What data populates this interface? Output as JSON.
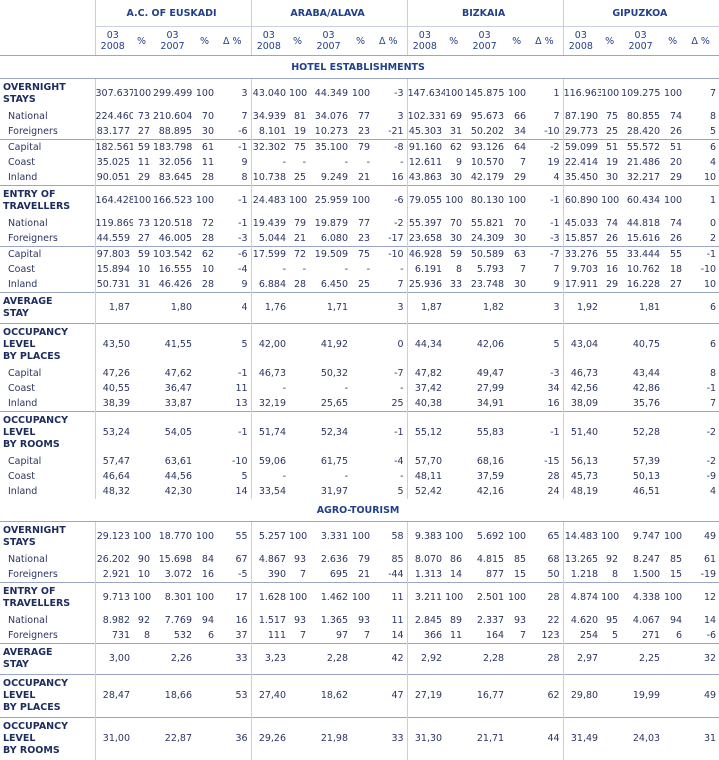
{
  "header": {
    "regions": [
      "A.C. OF EUSKADI",
      "ARABA/ALAVA",
      "BIZKAIA",
      "GIPUZKOA"
    ],
    "columns": [
      [
        "03",
        "2008"
      ],
      [
        "%"
      ],
      [
        "03",
        "2007"
      ],
      [
        "%"
      ],
      [
        "Δ %"
      ]
    ]
  },
  "sections": [
    {
      "title": "HOTEL ESTABLISHMENTS",
      "groups": [
        [
          {
            "label": [
              "OVERNIGHT",
              "STAYS"
            ],
            "values": [
              "307.637",
              "100",
              "299.499",
              "100",
              "3",
              "43.040",
              "100",
              "44.349",
              "100",
              "-3",
              "147.634",
              "100",
              "145.875",
              "100",
              "1",
              "116.963",
              "100",
              "109.275",
              "100",
              "7"
            ]
          },
          {
            "label": [
              "National"
            ],
            "values": [
              "224.460",
              "73",
              "210.604",
              "70",
              "7",
              "34.939",
              "81",
              "34.076",
              "77",
              "3",
              "102.331",
              "69",
              "95.673",
              "66",
              "7",
              "87.190",
              "75",
              "80.855",
              "74",
              "8"
            ]
          },
          {
            "label": [
              "Foreigners"
            ],
            "values": [
              "83.177",
              "27",
              "88.895",
              "30",
              "-6",
              "8.101",
              "19",
              "10.273",
              "23",
              "-21",
              "45.303",
              "31",
              "50.202",
              "34",
              "-10",
              "29.773",
              "25",
              "28.420",
              "26",
              "5"
            ]
          }
        ],
        [
          {
            "label": [
              "Capital"
            ],
            "values": [
              "182.561",
              "59",
              "183.798",
              "61",
              "-1",
              "32.302",
              "75",
              "35.100",
              "79",
              "-8",
              "91.160",
              "62",
              "93.126",
              "64",
              "-2",
              "59.099",
              "51",
              "55.572",
              "51",
              "6"
            ]
          },
          {
            "label": [
              "Coast"
            ],
            "values": [
              "35.025",
              "11",
              "32.056",
              "11",
              "9",
              "-",
              "-",
              "-",
              "-",
              "-",
              "12.611",
              "9",
              "10.570",
              "7",
              "19",
              "22.414",
              "19",
              "21.486",
              "20",
              "4"
            ]
          },
          {
            "label": [
              "Inland"
            ],
            "values": [
              "90.051",
              "29",
              "83.645",
              "28",
              "8",
              "10.738",
              "25",
              "9.249",
              "21",
              "16",
              "43.863",
              "30",
              "42.179",
              "29",
              "4",
              "35.450",
              "30",
              "32.217",
              "29",
              "10"
            ]
          }
        ],
        [
          {
            "label": [
              "ENTRY OF",
              "TRAVELLERS"
            ],
            "values": [
              "164.428",
              "100",
              "166.523",
              "100",
              "-1",
              "24.483",
              "100",
              "25.959",
              "100",
              "-6",
              "79.055",
              "100",
              "80.130",
              "100",
              "-1",
              "60.890",
              "100",
              "60.434",
              "100",
              "1"
            ]
          },
          {
            "label": [
              "National"
            ],
            "values": [
              "119.869",
              "73",
              "120.518",
              "72",
              "-1",
              "19.439",
              "79",
              "19.879",
              "77",
              "-2",
              "55.397",
              "70",
              "55.821",
              "70",
              "-1",
              "45.033",
              "74",
              "44.818",
              "74",
              "0"
            ]
          },
          {
            "label": [
              "Foreigners"
            ],
            "values": [
              "44.559",
              "27",
              "46.005",
              "28",
              "-3",
              "5.044",
              "21",
              "6.080",
              "23",
              "-17",
              "23.658",
              "30",
              "24.309",
              "30",
              "-3",
              "15.857",
              "26",
              "15.616",
              "26",
              "2"
            ]
          }
        ],
        [
          {
            "label": [
              "Capital"
            ],
            "values": [
              "97.803",
              "59",
              "103.542",
              "62",
              "-6",
              "17.599",
              "72",
              "19.509",
              "75",
              "-10",
              "46.928",
              "59",
              "50.589",
              "63",
              "-7",
              "33.276",
              "55",
              "33.444",
              "55",
              "-1"
            ]
          },
          {
            "label": [
              "Coast"
            ],
            "values": [
              "15.894",
              "10",
              "16.555",
              "10",
              "-4",
              "-",
              "-",
              "-",
              "-",
              "-",
              "6.191",
              "8",
              "5.793",
              "7",
              "7",
              "9.703",
              "16",
              "10.762",
              "18",
              "-10"
            ]
          },
          {
            "label": [
              "Inland"
            ],
            "values": [
              "50.731",
              "31",
              "46.426",
              "28",
              "9",
              "6.884",
              "28",
              "6.450",
              "25",
              "7",
              "25.936",
              "33",
              "23.748",
              "30",
              "9",
              "17.911",
              "29",
              "16.228",
              "27",
              "10"
            ]
          }
        ],
        [
          {
            "label": [
              "AVERAGE",
              "STAY"
            ],
            "values": [
              "1,87",
              null,
              "1,80",
              null,
              "4",
              "1,76",
              null,
              "1,71",
              null,
              "3",
              "1,87",
              null,
              "1,82",
              null,
              "3",
              "1,92",
              null,
              "1,81",
              null,
              "6"
            ]
          }
        ],
        [
          {
            "label": [
              "OCCUPANCY",
              "LEVEL",
              "BY PLACES"
            ],
            "values": [
              "43,50",
              null,
              "41,55",
              null,
              "5",
              "42,00",
              null,
              "41,92",
              null,
              "0",
              "44,34",
              null,
              "42,06",
              null,
              "5",
              "43,04",
              null,
              "40,75",
              null,
              "6"
            ]
          },
          {
            "label": [
              "Capital"
            ],
            "values": [
              "47,26",
              null,
              "47,62",
              null,
              "-1",
              "46,73",
              null,
              "50,32",
              null,
              "-7",
              "47,82",
              null,
              "49,47",
              null,
              "-3",
              "46,73",
              null,
              "43,44",
              null,
              "8"
            ]
          },
          {
            "label": [
              "Coast"
            ],
            "values": [
              "40,55",
              null,
              "36,47",
              null,
              "11",
              "-",
              null,
              "-",
              null,
              "-",
              "37,42",
              null,
              "27,99",
              null,
              "34",
              "42,56",
              null,
              "42,86",
              null,
              "-1"
            ]
          },
          {
            "label": [
              "Inland"
            ],
            "values": [
              "38,39",
              null,
              "33,87",
              null,
              "13",
              "32,19",
              null,
              "25,65",
              null,
              "25",
              "40,38",
              null,
              "34,91",
              null,
              "16",
              "38,09",
              null,
              "35,76",
              null,
              "7"
            ]
          }
        ],
        [
          {
            "label": [
              "OCCUPANCY",
              "LEVEL",
              "BY ROOMS"
            ],
            "values": [
              "53,24",
              null,
              "54,05",
              null,
              "-1",
              "51,74",
              null,
              "52,34",
              null,
              "-1",
              "55,12",
              null,
              "55,83",
              null,
              "-1",
              "51,40",
              null,
              "52,28",
              null,
              "-2"
            ]
          },
          {
            "label": [
              "Capital"
            ],
            "values": [
              "57,47",
              null,
              "63,61",
              null,
              "-10",
              "59,06",
              null,
              "61,75",
              null,
              "-4",
              "57,70",
              null,
              "68,16",
              null,
              "-15",
              "56,13",
              null,
              "57,39",
              null,
              "-2"
            ]
          },
          {
            "label": [
              "Coast"
            ],
            "values": [
              "46,64",
              null,
              "44,56",
              null,
              "5",
              "-",
              null,
              "-",
              null,
              "-",
              "48,11",
              null,
              "37,59",
              null,
              "28",
              "45,73",
              null,
              "50,13",
              null,
              "-9"
            ]
          },
          {
            "label": [
              "Inland"
            ],
            "values": [
              "48,32",
              null,
              "42,30",
              null,
              "14",
              "33,54",
              null,
              "31,97",
              null,
              "5",
              "52,42",
              null,
              "42,16",
              null,
              "24",
              "48,19",
              null,
              "46,51",
              null,
              "4"
            ]
          }
        ]
      ]
    },
    {
      "title": "AGRO-TOURISM",
      "groups": [
        [
          {
            "label": [
              "OVERNIGHT",
              "STAYS"
            ],
            "values": [
              "29.123",
              "100",
              "18.770",
              "100",
              "55",
              "5.257",
              "100",
              "3.331",
              "100",
              "58",
              "9.383",
              "100",
              "5.692",
              "100",
              "65",
              "14.483",
              "100",
              "9.747",
              "100",
              "49"
            ]
          },
          {
            "label": [
              "National"
            ],
            "values": [
              "26.202",
              "90",
              "15.698",
              "84",
              "67",
              "4.867",
              "93",
              "2.636",
              "79",
              "85",
              "8.070",
              "86",
              "4.815",
              "85",
              "68",
              "13.265",
              "92",
              "8.247",
              "85",
              "61"
            ]
          },
          {
            "label": [
              "Foreigners"
            ],
            "values": [
              "2.921",
              "10",
              "3.072",
              "16",
              "-5",
              "390",
              "7",
              "695",
              "21",
              "-44",
              "1.313",
              "14",
              "877",
              "15",
              "50",
              "1.218",
              "8",
              "1.500",
              "15",
              "-19"
            ]
          }
        ],
        [
          {
            "label": [
              "ENTRY OF",
              "TRAVELLERS"
            ],
            "values": [
              "9.713",
              "100",
              "8.301",
              "100",
              "17",
              "1.628",
              "100",
              "1.462",
              "100",
              "11",
              "3.211",
              "100",
              "2.501",
              "100",
              "28",
              "4.874",
              "100",
              "4.338",
              "100",
              "12"
            ]
          },
          {
            "label": [
              "National"
            ],
            "values": [
              "8.982",
              "92",
              "7.769",
              "94",
              "16",
              "1.517",
              "93",
              "1.365",
              "93",
              "11",
              "2.845",
              "89",
              "2.337",
              "93",
              "22",
              "4.620",
              "95",
              "4.067",
              "94",
              "14"
            ]
          },
          {
            "label": [
              "Foreigners"
            ],
            "values": [
              "731",
              "8",
              "532",
              "6",
              "37",
              "111",
              "7",
              "97",
              "7",
              "14",
              "366",
              "11",
              "164",
              "7",
              "123",
              "254",
              "5",
              "271",
              "6",
              "-6"
            ]
          }
        ],
        [
          {
            "label": [
              "AVERAGE",
              "STAY"
            ],
            "values": [
              "3,00",
              null,
              "2,26",
              null,
              "33",
              "3,23",
              null,
              "2,28",
              null,
              "42",
              "2,92",
              null,
              "2,28",
              null,
              "28",
              "2,97",
              null,
              "2,25",
              null,
              "32"
            ]
          }
        ],
        [
          {
            "label": [
              "OCCUPANCY",
              "LEVEL",
              "BY PLACES"
            ],
            "values": [
              "28,47",
              null,
              "18,66",
              null,
              "53",
              "27,40",
              null,
              "18,62",
              null,
              "47",
              "27,19",
              null,
              "16,77",
              null,
              "62",
              "29,80",
              null,
              "19,99",
              null,
              "49"
            ]
          }
        ],
        [
          {
            "label": [
              "OCCUPANCY",
              "LEVEL",
              "BY ROOMS"
            ],
            "values": [
              "31,00",
              null,
              "22,87",
              null,
              "36",
              "29,26",
              null,
              "21,98",
              null,
              "33",
              "31,30",
              null,
              "21,71",
              null,
              "44",
              "31,49",
              null,
              "24,03",
              null,
              "31"
            ]
          }
        ]
      ]
    }
  ]
}
